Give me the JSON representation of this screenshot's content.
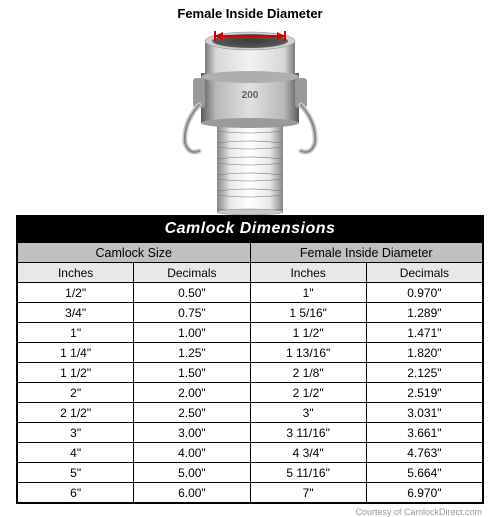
{
  "diagram": {
    "label": "Female Inside Diameter",
    "arrow_color": "#d40000",
    "metal_light": "#e8e8e8",
    "metal_mid": "#bcbcbc",
    "metal_dark": "#8a8a8a",
    "metal_darker": "#6a6a6a"
  },
  "table": {
    "title": "Camlock Dimensions",
    "group_headers": [
      "Camlock Size",
      "Female Inside Diameter"
    ],
    "sub_headers": [
      "Inches",
      "Decimals",
      "Inches",
      "Decimals"
    ],
    "rows": [
      [
        "1/2\"",
        "0.50\"",
        "1\"",
        "0.970\""
      ],
      [
        "3/4\"",
        "0.75\"",
        "1 5/16\"",
        "1.289\""
      ],
      [
        "1\"",
        "1.00\"",
        "1 1/2\"",
        "1.471\""
      ],
      [
        "1 1/4\"",
        "1.25\"",
        "1 13/16\"",
        "1.820\""
      ],
      [
        "1 1/2\"",
        "1.50\"",
        "2 1/8\"",
        "2.125\""
      ],
      [
        "2\"",
        "2.00\"",
        "2 1/2\"",
        "2.519\""
      ],
      [
        "2 1/2\"",
        "2.50\"",
        "3\"",
        "3.031\""
      ],
      [
        "3\"",
        "3.00\"",
        "3 11/16\"",
        "3.661\""
      ],
      [
        "4\"",
        "4.00\"",
        "4 3/4\"",
        "4.763\""
      ],
      [
        "5\"",
        "5.00\"",
        "5 11/16\"",
        "5.664\""
      ],
      [
        "6\"",
        "6.00\"",
        "7\"",
        "6.970\""
      ]
    ]
  },
  "credit": "Courtesy of CamlockDirect.com"
}
